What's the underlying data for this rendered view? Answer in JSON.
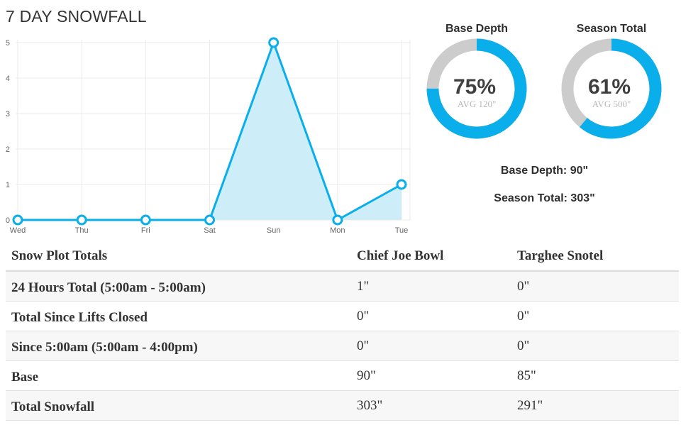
{
  "chart_data": {
    "type": "area",
    "title": "7 DAY SNOWFALL",
    "categories": [
      "Wed",
      "Thu",
      "Fri",
      "Sat",
      "Sun",
      "Mon",
      "Tue"
    ],
    "series": [
      {
        "values": [
          0,
          0,
          0,
          0,
          5,
          0,
          1
        ]
      }
    ],
    "ylim": [
      0,
      5
    ],
    "yticks": [
      0,
      1,
      2,
      3,
      4,
      5
    ],
    "grid": true,
    "colors": {
      "line": "#0aaeea",
      "fill": "#cdeef9",
      "grid": "#ebebeb"
    }
  },
  "gauges": [
    {
      "title": "Base Depth",
      "percent": 75,
      "percent_label": "75%",
      "avg_label": "AVG 120\""
    },
    {
      "title": "Season Total",
      "percent": 61,
      "percent_label": "61%",
      "avg_label": "AVG 500\""
    }
  ],
  "gauge_colors": {
    "fill": "#0aaeea",
    "track": "#cccccc"
  },
  "summary": {
    "base_depth": "Base Depth: 90\"",
    "season_total": "Season Total: 303\""
  },
  "table": {
    "headers": [
      "Snow Plot Totals",
      "Chief Joe Bowl",
      "Targhee Snotel"
    ],
    "rows": [
      [
        "24 Hours Total (5:00am - 5:00am)",
        "1\"",
        "0\""
      ],
      [
        "Total Since Lifts Closed",
        "0\"",
        "0\""
      ],
      [
        "Since 5:00am (5:00am - 4:00pm)",
        "0\"",
        "0\""
      ],
      [
        "Base",
        "90\"",
        "85\""
      ],
      [
        "Total Snowfall",
        "303\"",
        "291\""
      ]
    ]
  }
}
